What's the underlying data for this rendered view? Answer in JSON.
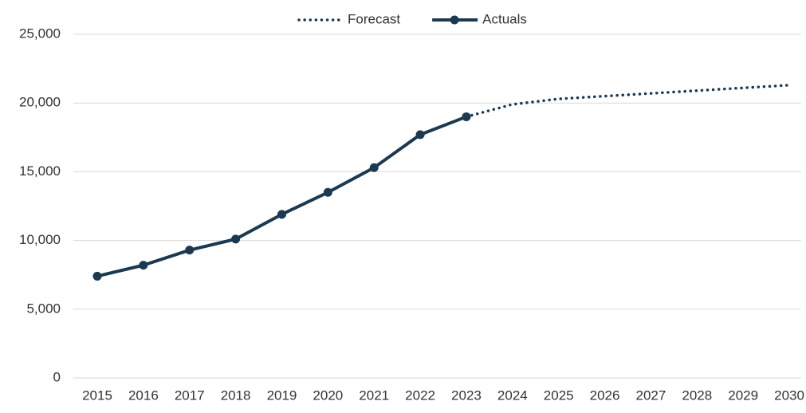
{
  "chart_data": {
    "type": "line",
    "categories": [
      "2015",
      "2016",
      "2017",
      "2018",
      "2019",
      "2020",
      "2021",
      "2022",
      "2023",
      "2024",
      "2025",
      "2026",
      "2027",
      "2028",
      "2029",
      "2030"
    ],
    "series": [
      {
        "name": "Forecast",
        "color": "#1b3a52",
        "line_style": "dotted",
        "markers": false,
        "values": [
          null,
          null,
          null,
          null,
          null,
          null,
          null,
          null,
          19000,
          19900,
          20300,
          20500,
          20700,
          20900,
          21100,
          21300
        ]
      },
      {
        "name": "Actuals",
        "color": "#1b3a52",
        "line_style": "solid",
        "markers": true,
        "values": [
          7400,
          8200,
          9300,
          10100,
          11900,
          13500,
          15300,
          17700,
          19000,
          null,
          null,
          null,
          null,
          null,
          null,
          null
        ]
      }
    ],
    "ylim": [
      0,
      25000
    ],
    "yticks": [
      0,
      {
        "value": 5000,
        "label": "5,000"
      },
      {
        "value": 10000,
        "label": "10,000"
      },
      {
        "value": 15000,
        "label": "15,000"
      },
      {
        "value": 20000,
        "label": "20,000"
      },
      {
        "value": 25000,
        "label": "25,000"
      }
    ],
    "grid": true,
    "legend": "top"
  }
}
